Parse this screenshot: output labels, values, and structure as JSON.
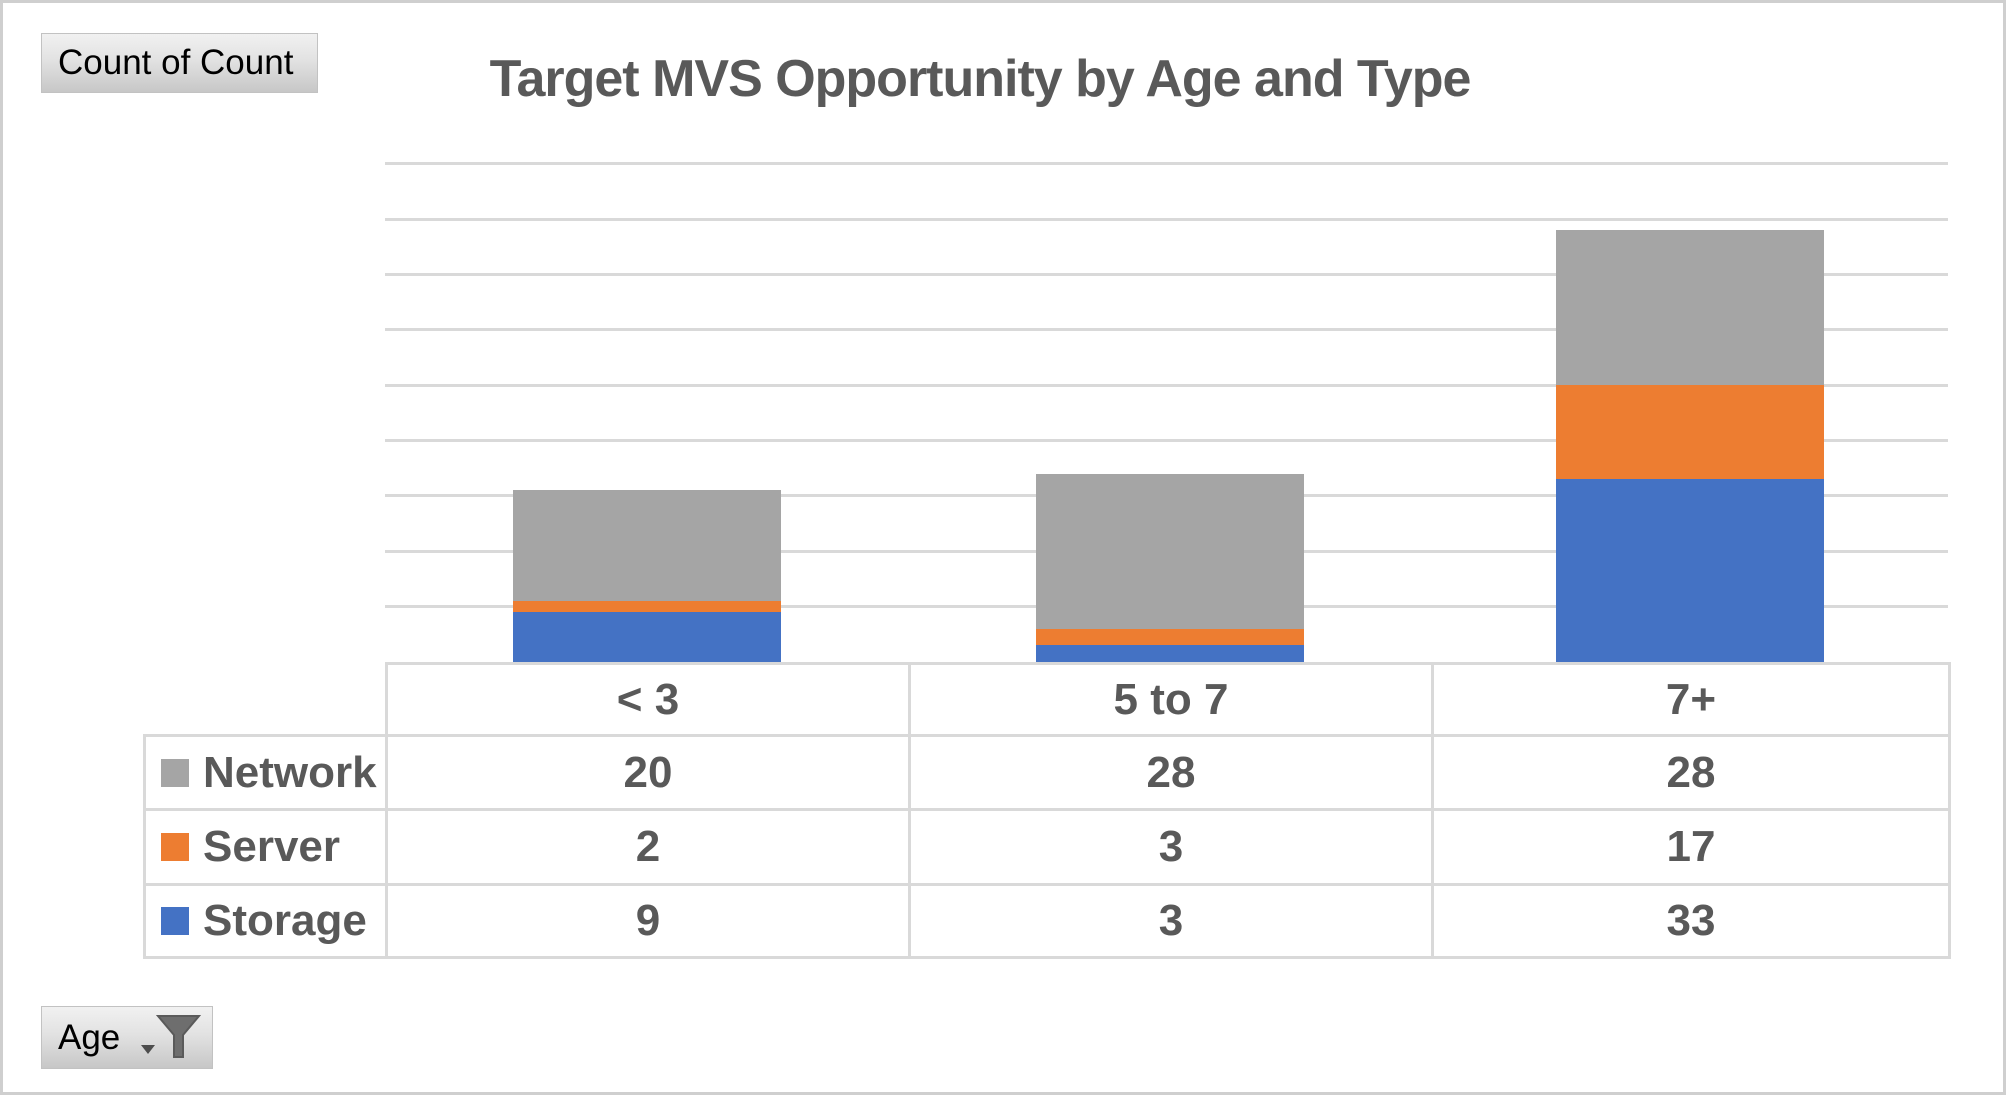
{
  "pivot_buttons": {
    "value_field": "Count of Count",
    "axis_field": "Age"
  },
  "chart_data": {
    "type": "bar",
    "stacked": true,
    "title": "Target MVS Opportunity by Age and Type",
    "categories": [
      "< 3",
      "5 to 7",
      "7+"
    ],
    "series": [
      {
        "name": "Network",
        "color": "#A5A5A5",
        "values": [
          20,
          28,
          28
        ]
      },
      {
        "name": "Server",
        "color": "#ED7D31",
        "values": [
          2,
          3,
          17
        ]
      },
      {
        "name": "Storage",
        "color": "#4472C4",
        "values": [
          9,
          3,
          33
        ]
      }
    ],
    "stack_order_bottom_to_top": [
      "Storage",
      "Server",
      "Network"
    ],
    "ylim": [
      0,
      90
    ],
    "grid_step": 10,
    "gridlines_on": true,
    "y_axis_labels_shown": false,
    "legend_position": "data-table-left",
    "data_table_shown": true
  },
  "colors": {
    "title_text": "#595959",
    "table_text": "#595959",
    "gridline": "#d9d9d9",
    "table_border": "#d9d9d9",
    "storage_blue": "#4472C4",
    "server_orange": "#ED7D31",
    "network_gray": "#A5A5A5",
    "funnel_icon": "#6e6e6e"
  }
}
